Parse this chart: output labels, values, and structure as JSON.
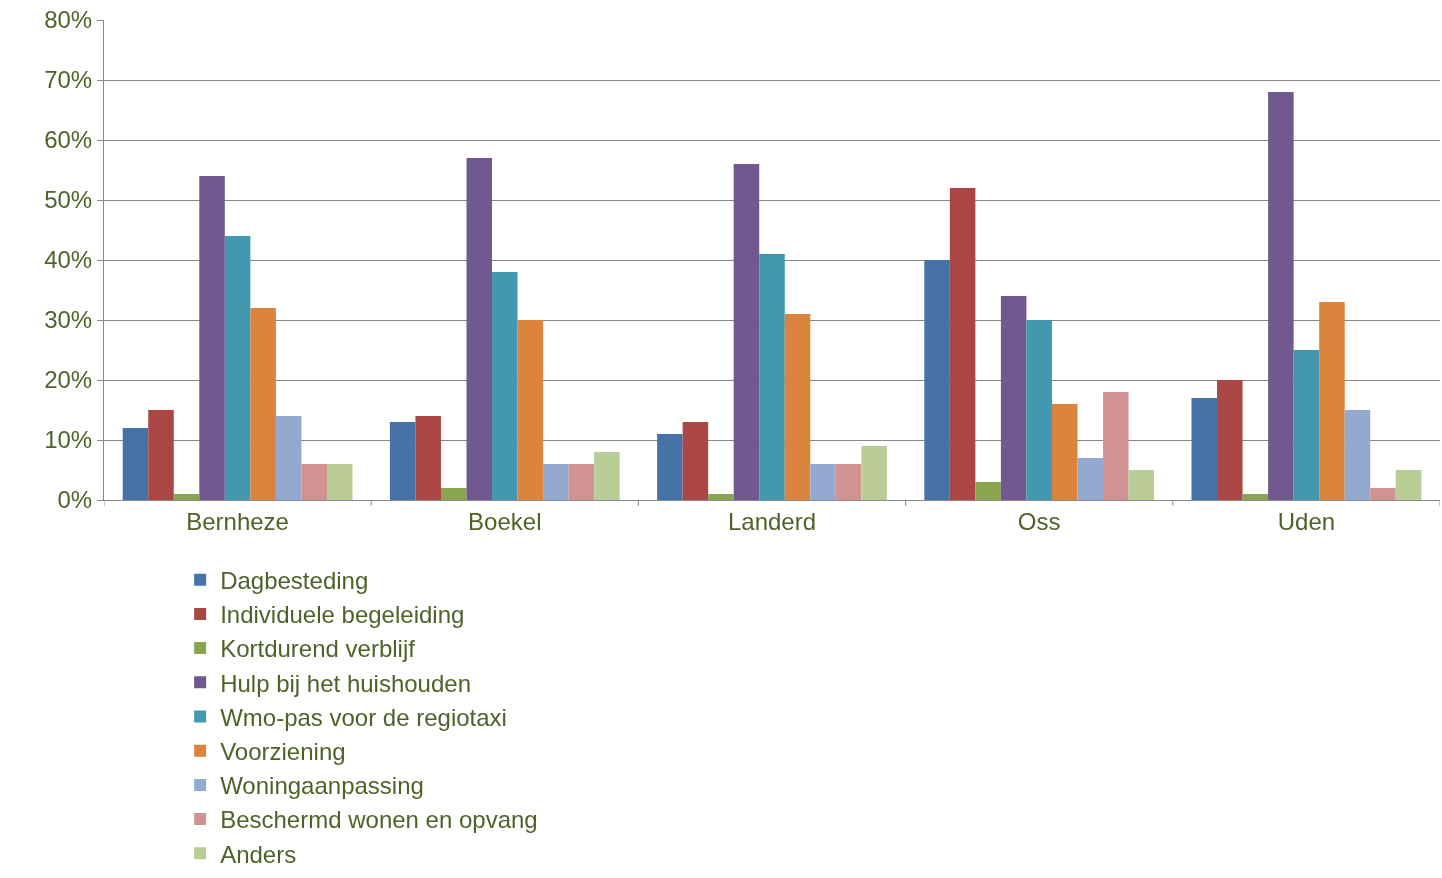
{
  "chart_data": {
    "type": "bar",
    "categories": [
      "Bernheze",
      "Boekel",
      "Landerd",
      "Oss",
      "Uden"
    ],
    "series": [
      {
        "name": "Dagbesteding",
        "color": "#4572a7",
        "values": [
          12,
          13,
          11,
          40,
          17
        ]
      },
      {
        "name": "Individuele begeleiding",
        "color": "#aa4643",
        "values": [
          15,
          14,
          13,
          52,
          20
        ]
      },
      {
        "name": "Kortdurend verblijf",
        "color": "#89a54e",
        "values": [
          1,
          2,
          1,
          3,
          1
        ]
      },
      {
        "name": "Hulp bij het huishouden",
        "color": "#71588f",
        "values": [
          54,
          57,
          56,
          34,
          68
        ]
      },
      {
        "name": "Wmo-pas voor de regiotaxi",
        "color": "#4198af",
        "values": [
          44,
          38,
          41,
          30,
          25
        ]
      },
      {
        "name": "Voorziening",
        "color": "#db843d",
        "values": [
          32,
          30,
          31,
          16,
          33
        ]
      },
      {
        "name": "Woningaanpassing",
        "color": "#93a9cf",
        "values": [
          14,
          6,
          6,
          7,
          15
        ]
      },
      {
        "name": "Beschermd wonen en opvang",
        "color": "#d19392",
        "values": [
          6,
          6,
          6,
          18,
          2
        ]
      },
      {
        "name": "Anders",
        "color": "#b9cd96",
        "values": [
          6,
          8,
          9,
          5,
          5
        ]
      }
    ],
    "ylim": [
      0,
      80
    ],
    "yticks": [
      {
        "value": 0,
        "label": "0%"
      },
      {
        "value": 10,
        "label": "10%"
      },
      {
        "value": 20,
        "label": "20%"
      },
      {
        "value": 30,
        "label": "30%"
      },
      {
        "value": 40,
        "label": "40%"
      },
      {
        "value": 50,
        "label": "50%"
      },
      {
        "value": 60,
        "label": "60%"
      },
      {
        "value": 70,
        "label": "70%"
      },
      {
        "value": 80,
        "label": "80%"
      }
    ],
    "grid": "y",
    "legend": "bottom"
  }
}
